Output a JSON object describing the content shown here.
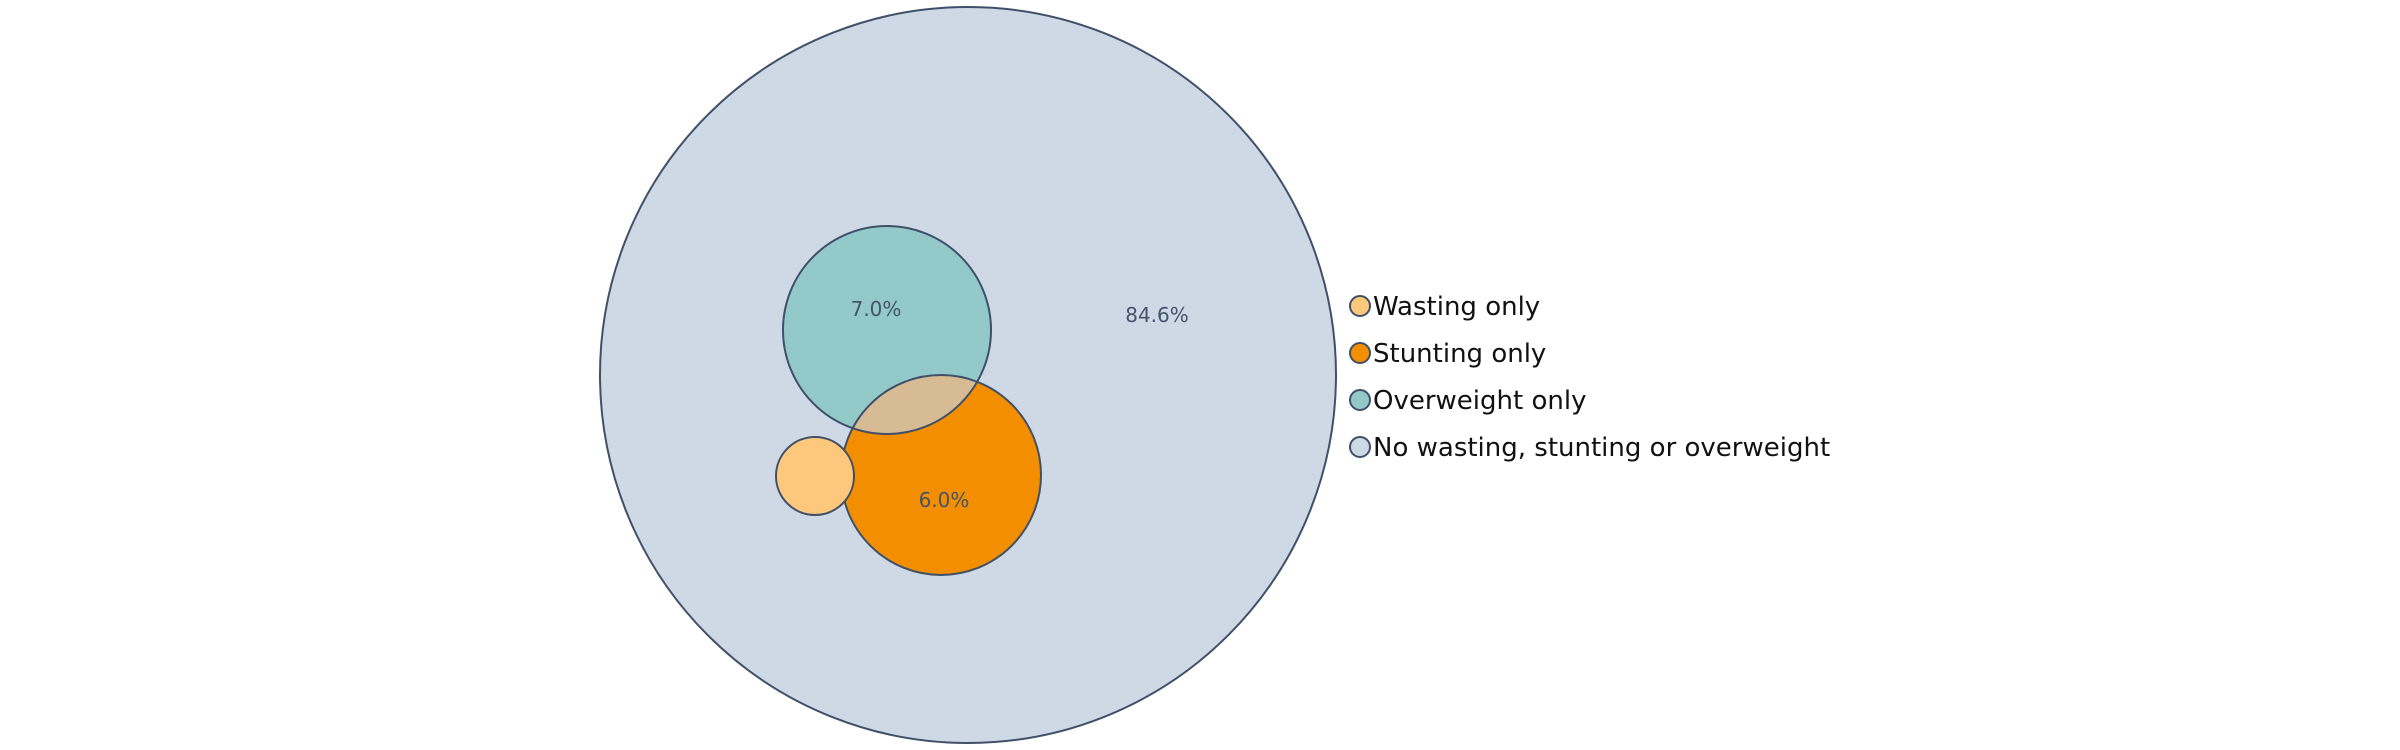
{
  "chart_data": {
    "type": "venn",
    "outline_color": "#3f5068",
    "label_color": "#44546a",
    "sets": [
      {
        "key": "wasting",
        "name": "Wasting only",
        "color": "#fdc87c",
        "value": null,
        "label": ""
      },
      {
        "key": "stunting",
        "name": "Stunting only",
        "color": "#f28e00",
        "value": 6.0,
        "label": "6.0%"
      },
      {
        "key": "overweight",
        "name": "Overweight only",
        "color": "#93c9c9",
        "value": 7.0,
        "label": "7.0%"
      },
      {
        "key": "none",
        "name": "No wasting, stunting or overweight",
        "color": "#cfd8e5",
        "value": 84.6,
        "label": "84.6%"
      }
    ],
    "overlap_color": "#d6bb95",
    "legend_position": "right"
  }
}
